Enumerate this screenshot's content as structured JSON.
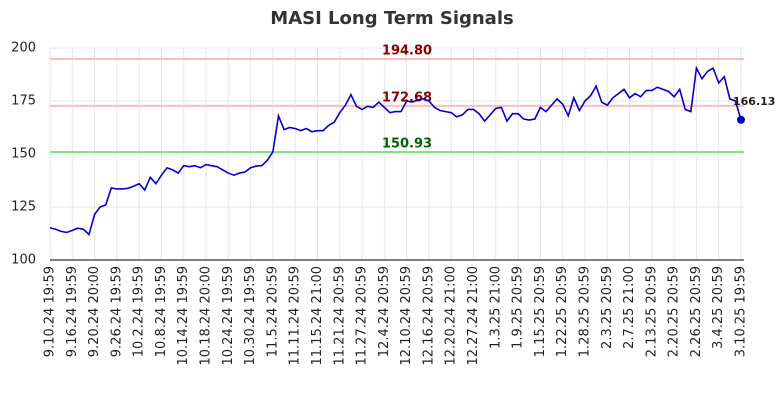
{
  "chart_data": {
    "type": "line",
    "title": "MASI Long Term Signals",
    "color": "#0000cc",
    "grid": true,
    "categories": [
      "9.10.24 19:59",
      null,
      null,
      null,
      "9.16.24 19:59",
      null,
      null,
      null,
      "9.20.24 20:00",
      null,
      null,
      null,
      "9.26.24 19:59",
      null,
      null,
      null,
      "10.2.24 19:59",
      null,
      null,
      null,
      "10.8.24 19:59",
      null,
      null,
      null,
      "10.14.24 19:59",
      null,
      null,
      null,
      "10.18.24 20:00",
      null,
      null,
      null,
      "10.24.24 19:59",
      null,
      null,
      null,
      "10.30.24 19:59",
      null,
      null,
      null,
      "11.5.24 20:59",
      null,
      null,
      null,
      "11.11.24 20:59",
      null,
      null,
      null,
      "11.15.24 21:00",
      null,
      null,
      null,
      "11.21.24 20:59",
      null,
      null,
      null,
      "11.27.24 20:59",
      null,
      null,
      null,
      "12.4.24 20:59",
      null,
      null,
      null,
      "12.10.24 20:59",
      null,
      null,
      null,
      "12.16.24 20:59",
      null,
      null,
      null,
      "12.20.24 21:00",
      null,
      null,
      null,
      "12.27.24 21:00",
      null,
      null,
      null,
      "1.3.25 21:00",
      null,
      null,
      null,
      "1.9.25 20:59",
      null,
      null,
      null,
      "1.15.25 20:59",
      null,
      null,
      null,
      "1.22.25 20:59",
      null,
      null,
      null,
      "1.28.25 20:59",
      null,
      null,
      null,
      "2.3.25 20:59",
      null,
      null,
      null,
      "2.7.25 21:00",
      null,
      null,
      null,
      "2.13.25 20:59",
      null,
      null,
      null,
      "2.20.25 20:59",
      null,
      null,
      null,
      "2.26.25 20:59",
      null,
      null,
      null,
      "3.4.25 20:59",
      null,
      null,
      null,
      "3.10.25 19:59"
    ],
    "values": [
      115.2,
      114.5,
      113.5,
      113,
      114,
      115,
      114.5,
      112,
      121.5,
      125,
      126,
      134,
      133.5,
      133.5,
      133.8,
      134.8,
      136,
      133,
      139,
      136,
      140,
      143.5,
      142.5,
      141,
      144.5,
      144,
      144.5,
      143.5,
      145,
      144.5,
      144,
      142.5,
      141,
      140,
      141,
      141.5,
      143.5,
      144.3,
      144.5,
      147,
      151,
      168,
      161.5,
      162.5,
      162,
      161,
      162,
      160.5,
      161,
      161,
      163.5,
      165,
      169.5,
      173,
      178,
      172.5,
      171,
      172.5,
      172,
      174.5,
      172,
      169.5,
      170,
      170,
      175,
      174.5,
      175.5,
      176,
      175,
      172,
      170.5,
      170,
      169.5,
      167.5,
      168.5,
      171,
      171,
      169,
      165.5,
      168.5,
      171.5,
      172,
      165.5,
      169,
      169,
      166.5,
      166,
      166.5,
      172,
      170,
      173,
      176,
      173.5,
      168,
      176.5,
      170.5,
      175,
      177.5,
      182,
      174.5,
      173,
      176.5,
      178.5,
      180.5,
      176.5,
      178.5,
      177,
      180,
      180,
      181.5,
      180.5,
      179.5,
      177,
      180.5,
      171,
      170,
      190.5,
      185.5,
      189,
      190.5,
      183.5,
      186.5,
      176,
      175,
      166.13
    ],
    "ylim": [
      100,
      200
    ],
    "yticks": [
      100,
      125,
      150,
      175,
      200
    ],
    "hlines": [
      {
        "value": 194.8,
        "label": "194.80",
        "color": "#ffbbbb",
        "text_color": "#8b0000"
      },
      {
        "value": 172.68,
        "color": "#ffbbbb",
        "text_color": "#8b0000"
      },
      {
        "value": 150.93,
        "color": "#88dd88",
        "text_color": "#006400"
      }
    ]
  }
}
